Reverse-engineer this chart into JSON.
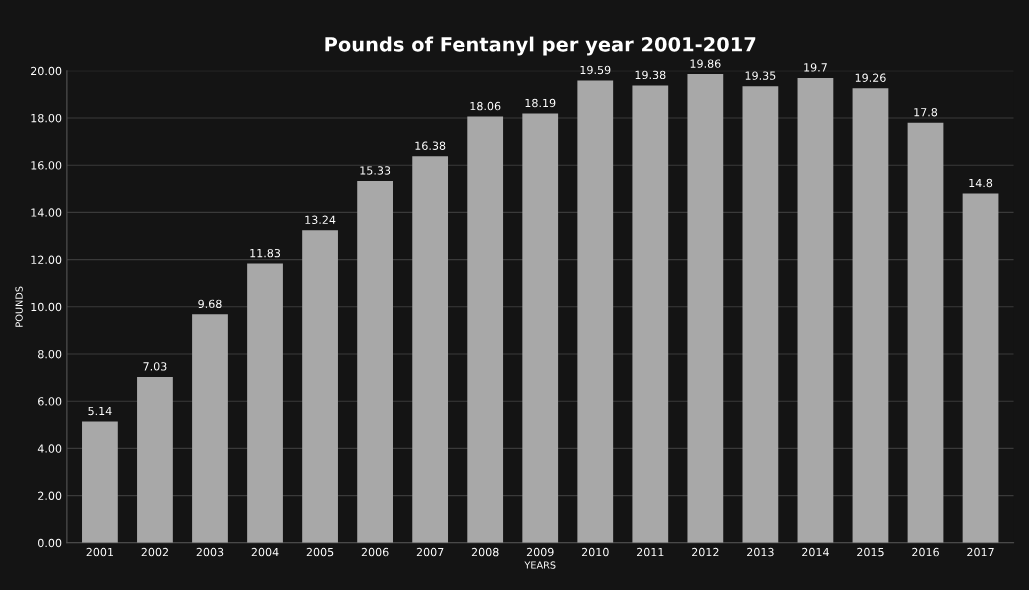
{
  "chart_data": {
    "type": "bar",
    "title": "Pounds of Fentanyl per year 2001-2017",
    "xlabel": "YEARS",
    "ylabel": "POUNDS",
    "categories": [
      "2001",
      "2002",
      "2003",
      "2004",
      "2005",
      "2006",
      "2007",
      "2008",
      "2009",
      "2010",
      "2011",
      "2012",
      "2013",
      "2014",
      "2015",
      "2016",
      "2017"
    ],
    "values": [
      5.14,
      7.03,
      9.68,
      11.83,
      13.24,
      15.33,
      16.38,
      18.06,
      18.19,
      19.59,
      19.38,
      19.86,
      19.35,
      19.7,
      19.26,
      17.8,
      14.8
    ],
    "value_labels": [
      "5.14",
      "7.03",
      "9.68",
      "11.83",
      "13.24",
      "15.33",
      "16.38",
      "18.06",
      "18.19",
      "19.59",
      "19.38",
      "19.86",
      "19.35",
      "19.7",
      "19.26",
      "17.8",
      "14.8"
    ],
    "color": "#a8a8a8",
    "ylim": [
      0,
      20
    ],
    "yticks": [
      {
        "value": 0,
        "label": "0.00"
      },
      {
        "value": 2,
        "label": "2.00"
      },
      {
        "value": 4,
        "label": "4.00"
      },
      {
        "value": 6,
        "label": "6.00"
      },
      {
        "value": 8,
        "label": "8.00"
      },
      {
        "value": 10,
        "label": "10.00"
      },
      {
        "value": 12,
        "label": "12.00"
      },
      {
        "value": 14,
        "label": "14.00"
      },
      {
        "value": 16,
        "label": "16.00"
      },
      {
        "value": 18,
        "label": "18.00"
      },
      {
        "value": 20,
        "label": "20.00"
      }
    ],
    "grid": "y"
  }
}
